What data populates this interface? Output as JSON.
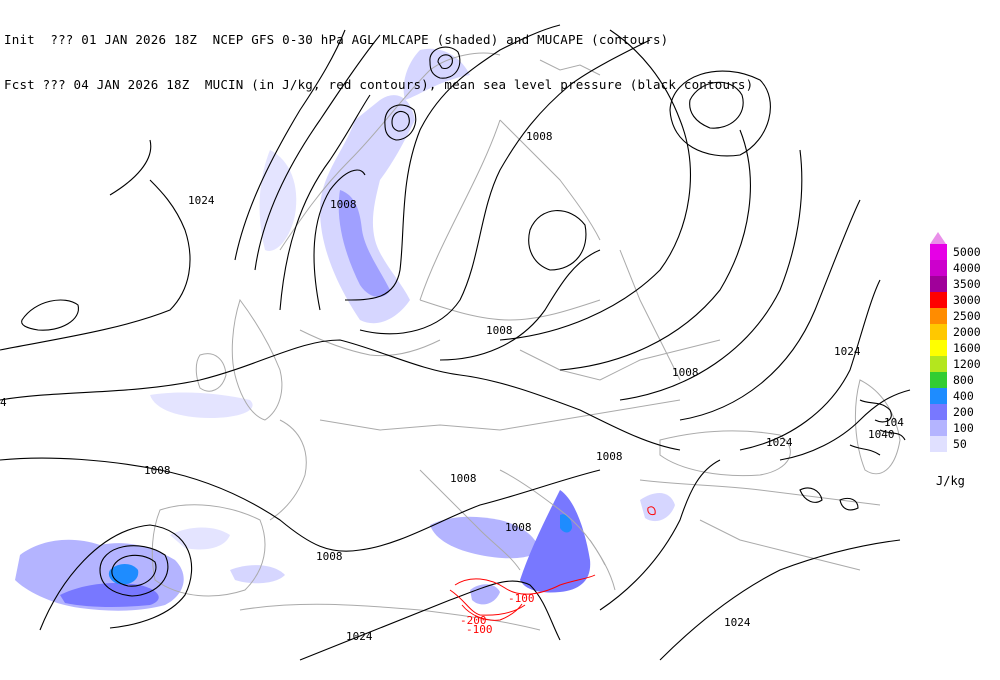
{
  "header": {
    "line1": "Init  ??? 01 JAN 2026 18Z  NCEP GFS 0-30 hPa AGL MLCAPE (shaded) and MUCAPE (contours)",
    "line2": "Fcst ??? 04 JAN 2026 18Z  MUCIN (in J/kg, red contours), mean sea level pressure (black contours)"
  },
  "map": {
    "pressure_labels": [
      "1024",
      "1008",
      "1008",
      "1024",
      "1008",
      "1008",
      "1024",
      "1008",
      "1008",
      "1008",
      "1008",
      "1008",
      "1024",
      "1024",
      "104",
      "1040",
      "4"
    ],
    "mucin_labels": [
      "-100",
      "-200",
      "-100"
    ]
  },
  "legend": {
    "items": [
      {
        "label": "5000",
        "color": "#e600e6"
      },
      {
        "label": "4000",
        "color": "#cc00cc"
      },
      {
        "label": "3500",
        "color": "#a0009a"
      },
      {
        "label": "3000",
        "color": "#ff0000"
      },
      {
        "label": "2500",
        "color": "#ff8c00"
      },
      {
        "label": "2000",
        "color": "#ffc800"
      },
      {
        "label": "1600",
        "color": "#ffff00"
      },
      {
        "label": "1200",
        "color": "#b4e61e"
      },
      {
        "label": "800",
        "color": "#32cd32"
      },
      {
        "label": "400",
        "color": "#1e8cff"
      },
      {
        "label": "200",
        "color": "#7878ff"
      },
      {
        "label": "100",
        "color": "#b4b4ff"
      },
      {
        "label": "50",
        "color": "#e0e0ff"
      }
    ],
    "top_arrow_color": "#e98fe9",
    "units": "J/kg"
  },
  "colors": {
    "pressure_contour": "#000000",
    "mucin_contour": "#ff0000",
    "borders": "#aaaaaa"
  }
}
